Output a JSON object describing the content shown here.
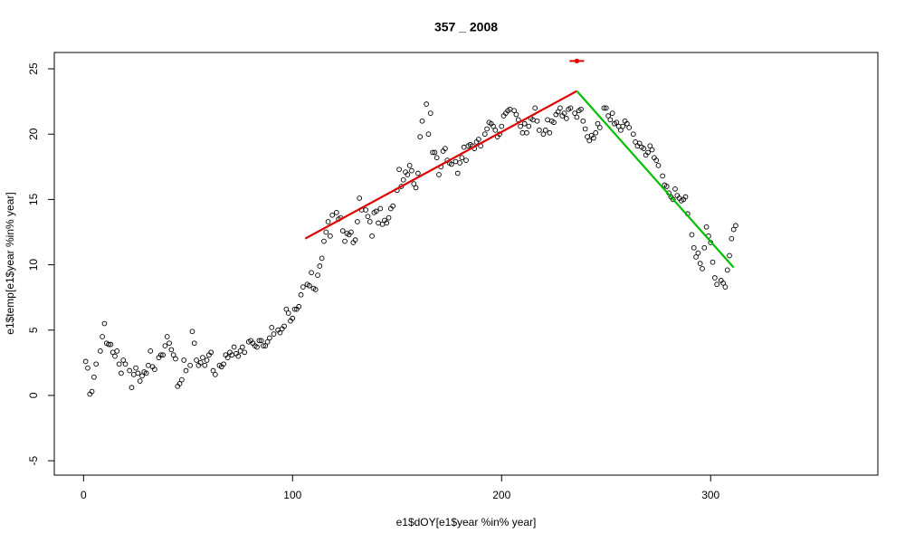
{
  "chart_data": {
    "type": "scatter",
    "title": "357 _ 2008",
    "x_label": "e1$dOY[e1$year %in% year]",
    "y_label": "e1$temp[e1$year %in% year]",
    "xlim": [
      -14,
      380
    ],
    "ylim": [
      -6.1,
      26.25
    ],
    "xticks": [
      0,
      100,
      200,
      300
    ],
    "yticks": [
      -5,
      0,
      5,
      10,
      15,
      20,
      25
    ],
    "point_color": "#000000",
    "x": [
      1,
      2,
      3,
      4,
      5,
      6,
      8,
      9,
      10,
      11,
      12,
      13,
      14,
      15,
      16,
      17,
      18,
      19,
      20,
      22,
      23,
      24,
      25,
      26,
      27,
      28,
      29,
      30,
      31,
      32,
      33,
      34,
      36,
      37,
      38,
      39,
      40,
      41,
      42,
      43,
      44,
      45,
      46,
      47,
      48,
      49,
      51,
      52,
      53,
      54,
      55,
      56,
      57,
      58,
      59,
      60,
      61,
      62,
      63,
      65,
      66,
      67,
      68,
      69,
      70,
      71,
      72,
      73,
      74,
      75,
      76,
      77,
      79,
      80,
      81,
      82,
      83,
      84,
      85,
      86,
      87,
      88,
      89,
      90,
      91,
      93,
      94,
      95,
      96,
      97,
      98,
      99,
      100,
      101,
      102,
      103,
      104,
      105,
      107,
      108,
      109,
      110,
      111,
      112,
      113,
      114,
      115,
      116,
      117,
      118,
      119,
      121,
      122,
      123,
      124,
      125,
      126,
      127,
      128,
      129,
      130,
      131,
      132,
      133,
      135,
      136,
      137,
      138,
      139,
      140,
      141,
      142,
      143,
      144,
      145,
      146,
      147,
      148,
      150,
      151,
      152,
      153,
      154,
      155,
      156,
      157,
      158,
      159,
      160,
      161,
      162,
      164,
      165,
      166,
      167,
      168,
      169,
      170,
      171,
      172,
      173,
      174,
      175,
      176,
      178,
      179,
      180,
      181,
      182,
      183,
      184,
      185,
      186,
      187,
      188,
      189,
      190,
      192,
      193,
      194,
      195,
      196,
      197,
      198,
      199,
      200,
      201,
      202,
      203,
      204,
      206,
      207,
      208,
      209,
      210,
      211,
      212,
      213,
      214,
      215,
      216,
      217,
      218,
      220,
      221,
      222,
      223,
      224,
      225,
      226,
      227,
      228,
      229,
      230,
      231,
      232,
      233,
      235,
      236,
      237,
      238,
      239,
      240,
      241,
      242,
      243,
      244,
      245,
      246,
      247,
      249,
      250,
      251,
      252,
      253,
      254,
      255,
      256,
      257,
      258,
      259,
      260,
      261,
      263,
      264,
      265,
      266,
      267,
      268,
      269,
      270,
      271,
      272,
      273,
      274,
      275,
      277,
      278,
      279,
      280,
      281,
      282,
      283,
      284,
      285,
      286,
      287,
      288,
      289,
      291,
      292,
      293,
      294,
      295,
      296,
      297,
      298,
      299,
      300,
      301,
      302,
      303,
      305,
      306,
      307,
      308,
      309,
      310,
      311,
      312
    ],
    "y": [
      2.6,
      2.1,
      0.1,
      0.3,
      1.4,
      2.4,
      3.4,
      4.5,
      5.5,
      4.0,
      3.9,
      3.9,
      3.3,
      3.0,
      3.4,
      2.4,
      1.7,
      2.7,
      2.4,
      1.9,
      0.6,
      1.6,
      2.1,
      1.7,
      1.1,
      1.5,
      1.8,
      1.7,
      2.3,
      3.4,
      2.2,
      2.0,
      2.9,
      3.1,
      3.1,
      3.8,
      4.5,
      4.0,
      3.5,
      3.1,
      2.8,
      0.7,
      0.9,
      1.2,
      2.7,
      1.9,
      2.3,
      4.9,
      4.0,
      2.7,
      2.3,
      2.5,
      2.9,
      2.3,
      2.7,
      3.1,
      3.3,
      1.9,
      1.6,
      2.3,
      2.2,
      2.4,
      3.1,
      2.9,
      3.3,
      3.1,
      3.7,
      3.2,
      3.0,
      3.4,
      3.7,
      3.3,
      4.1,
      4.2,
      4.0,
      3.8,
      3.7,
      4.2,
      4.2,
      3.8,
      3.8,
      4.1,
      4.4,
      5.2,
      4.7,
      5.0,
      4.8,
      5.1,
      5.3,
      6.6,
      6.3,
      5.7,
      5.9,
      6.6,
      6.6,
      6.8,
      7.7,
      8.3,
      8.5,
      8.4,
      9.4,
      8.2,
      8.1,
      9.2,
      9.9,
      10.5,
      11.8,
      12.5,
      13.3,
      12.2,
      13.8,
      14.0,
      13.5,
      13.6,
      12.6,
      11.8,
      12.4,
      12.3,
      12.5,
      11.7,
      11.9,
      13.3,
      15.1,
      14.2,
      14.2,
      13.7,
      13.3,
      12.2,
      14.0,
      14.1,
      13.2,
      14.3,
      13.1,
      13.4,
      13.2,
      13.6,
      14.3,
      14.5,
      15.7,
      17.3,
      16.0,
      16.5,
      17.1,
      16.9,
      17.6,
      17.2,
      16.2,
      15.9,
      17.0,
      19.8,
      21.0,
      22.3,
      20.0,
      21.6,
      18.6,
      18.6,
      18.2,
      16.9,
      17.5,
      18.7,
      18.9,
      18.0,
      17.8,
      17.7,
      17.9,
      17.0,
      17.8,
      18.2,
      19.0,
      18.0,
      19.1,
      19.2,
      19.1,
      18.9,
      19.4,
      19.6,
      19.1,
      20.0,
      20.4,
      20.9,
      20.8,
      20.6,
      20.3,
      19.8,
      20.0,
      20.6,
      21.4,
      21.6,
      21.8,
      21.9,
      21.8,
      21.5,
      21.1,
      20.6,
      20.1,
      20.8,
      20.1,
      20.6,
      21.2,
      21.1,
      22.0,
      21.0,
      20.3,
      20.0,
      20.3,
      21.1,
      20.1,
      21.0,
      20.9,
      21.5,
      21.7,
      22.0,
      21.4,
      21.6,
      21.2,
      21.9,
      22.0,
      21.6,
      21.3,
      21.8,
      21.9,
      21.0,
      20.4,
      19.8,
      19.5,
      19.9,
      19.7,
      20.1,
      20.8,
      20.5,
      22.0,
      22.0,
      21.4,
      21.1,
      21.6,
      20.8,
      20.9,
      20.6,
      20.3,
      20.6,
      21.0,
      20.8,
      20.5,
      20.0,
      19.4,
      19.1,
      19.3,
      19.0,
      18.9,
      18.4,
      18.6,
      19.1,
      18.8,
      18.2,
      18.0,
      17.6,
      16.8,
      16.1,
      16.0,
      15.5,
      15.2,
      15.0,
      15.8,
      15.3,
      15.1,
      14.9,
      15.0,
      15.2,
      13.9,
      12.3,
      11.3,
      10.6,
      10.9,
      10.1,
      9.7,
      11.3,
      12.9,
      12.2,
      11.7,
      10.2,
      9.0,
      8.5,
      8.8,
      8.6,
      8.3,
      9.6,
      10.7,
      12.0,
      12.7,
      13.0
    ],
    "lines": [
      {
        "color": "#e00000",
        "x": [
          106,
          236
        ],
        "y": [
          12.0,
          23.3
        ]
      },
      {
        "color": "#00c000",
        "x": [
          236,
          311
        ],
        "y": [
          23.3,
          9.8
        ]
      }
    ],
    "marker": {
      "color": "#e00000",
      "x": [
        236
      ],
      "y": [
        25.6
      ],
      "xerr": [
        3.5
      ]
    }
  }
}
